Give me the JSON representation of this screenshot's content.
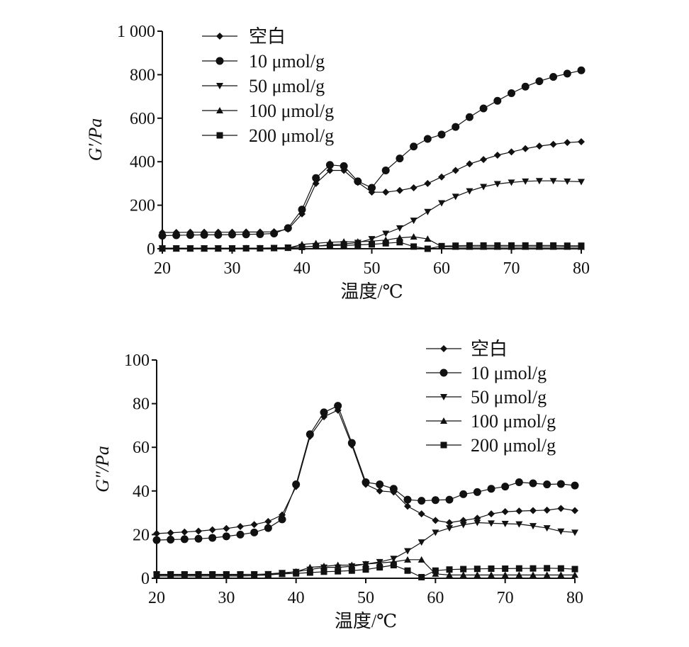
{
  "chart_data": [
    {
      "type": "line",
      "ylabel": "G′/Pa",
      "xlabel": "温度/℃",
      "xlim": [
        20,
        80
      ],
      "ylim": [
        0,
        1000
      ],
      "xticks": [
        20,
        30,
        40,
        50,
        60,
        70,
        80
      ],
      "yticks": [
        0,
        200,
        400,
        600,
        800,
        1000
      ],
      "ytick_labels": [
        "0",
        "200",
        "400",
        "600",
        "800",
        "1 000"
      ],
      "x": [
        20,
        22,
        24,
        26,
        28,
        30,
        32,
        34,
        36,
        38,
        40,
        42,
        44,
        46,
        48,
        50,
        52,
        54,
        56,
        58,
        60,
        62,
        64,
        66,
        68,
        70,
        72,
        74,
        76,
        78,
        80
      ],
      "legend_position": "top-left",
      "series": [
        {
          "name": "空白",
          "marker": "diamond",
          "values": [
            75,
            75,
            76,
            76,
            76,
            76,
            77,
            77,
            78,
            90,
            160,
            300,
            360,
            360,
            305,
            260,
            260,
            268,
            280,
            300,
            330,
            360,
            390,
            410,
            430,
            445,
            460,
            472,
            480,
            488,
            492
          ]
        },
        {
          "name": "10 μmol/g",
          "marker": "circle",
          "values": [
            60,
            62,
            63,
            64,
            64,
            65,
            66,
            67,
            70,
            95,
            180,
            325,
            385,
            380,
            310,
            280,
            360,
            415,
            470,
            505,
            525,
            560,
            605,
            645,
            680,
            715,
            745,
            770,
            790,
            805,
            820
          ]
        },
        {
          "name": "50 μmol/g",
          "marker": "triangle-down",
          "values": [
            3,
            3,
            3,
            3,
            3,
            3,
            3,
            3,
            4,
            5,
            8,
            12,
            18,
            22,
            28,
            45,
            70,
            95,
            130,
            170,
            210,
            240,
            265,
            285,
            298,
            305,
            310,
            312,
            312,
            310,
            308
          ]
        },
        {
          "name": "100 μmol/g",
          "marker": "triangle-up",
          "values": [
            1,
            1,
            1,
            1,
            1,
            1,
            2,
            2,
            2,
            3,
            20,
            25,
            30,
            32,
            32,
            35,
            40,
            50,
            55,
            45,
            10,
            8,
            8,
            8,
            8,
            8,
            8,
            8,
            8,
            8,
            8
          ]
        },
        {
          "name": "200 μmol/g",
          "marker": "square",
          "values": [
            1,
            1,
            1,
            1,
            1,
            1,
            2,
            2,
            3,
            5,
            8,
            12,
            15,
            15,
            18,
            20,
            25,
            30,
            10,
            0,
            12,
            14,
            15,
            15,
            15,
            15,
            15,
            15,
            15,
            14,
            14
          ]
        }
      ]
    },
    {
      "type": "line",
      "ylabel": "G″/Pa",
      "xlabel": "温度/℃",
      "xlim": [
        20,
        80
      ],
      "ylim": [
        0,
        100
      ],
      "xticks": [
        20,
        30,
        40,
        50,
        60,
        70,
        80
      ],
      "yticks": [
        0,
        20,
        40,
        60,
        80,
        100
      ],
      "ytick_labels": [
        "0",
        "20",
        "40",
        "60",
        "80",
        "100"
      ],
      "x": [
        20,
        22,
        24,
        26,
        28,
        30,
        32,
        34,
        36,
        38,
        40,
        42,
        44,
        46,
        48,
        50,
        52,
        54,
        56,
        58,
        60,
        62,
        64,
        66,
        68,
        70,
        72,
        74,
        76,
        78,
        80
      ],
      "legend_position": "top-right",
      "series": [
        {
          "name": "空白",
          "marker": "diamond",
          "values": [
            20.5,
            20.8,
            21.2,
            21.6,
            22.2,
            22.8,
            23.7,
            24.6,
            26,
            29,
            42,
            65,
            74,
            77,
            61,
            43,
            40,
            39.5,
            33,
            29.5,
            26.5,
            25.5,
            26.5,
            27.5,
            29.5,
            30.5,
            30.8,
            31,
            31.2,
            32,
            31
          ]
        },
        {
          "name": "10 μmol/g",
          "marker": "circle",
          "values": [
            17.5,
            17.7,
            17.9,
            18.1,
            18.5,
            19.2,
            20,
            21,
            23,
            27,
            43,
            66,
            76,
            79,
            62,
            44,
            43,
            41,
            36,
            35.5,
            35.8,
            36,
            38.5,
            39.5,
            41,
            42,
            44,
            43.5,
            43,
            43.2,
            42.5
          ]
        },
        {
          "name": "50 μmol/g",
          "marker": "triangle-down",
          "values": [
            1.5,
            1.5,
            1.5,
            1.5,
            1.5,
            1.5,
            1.5,
            1.7,
            2,
            2.5,
            3,
            4,
            5,
            5,
            5.5,
            6.5,
            7.5,
            9,
            12.5,
            16.5,
            21,
            23,
            24.5,
            25.5,
            25.2,
            25,
            24.8,
            24,
            23,
            21.5,
            21
          ]
        },
        {
          "name": "100 μmol/g",
          "marker": "triangle-up",
          "values": [
            1,
            1,
            1,
            1,
            1,
            1,
            1,
            1.2,
            1.5,
            2,
            3,
            5,
            5.5,
            6,
            6,
            6.5,
            7,
            7.5,
            8.5,
            8.5,
            2,
            1.5,
            1.5,
            1.5,
            1.5,
            1.5,
            1.5,
            1.5,
            1.5,
            1.5,
            1.5
          ]
        },
        {
          "name": "200 μmol/g",
          "marker": "square",
          "values": [
            1.8,
            1.8,
            1.8,
            1.8,
            1.8,
            1.8,
            1.8,
            1.8,
            1.8,
            2,
            2.2,
            2.6,
            3,
            3.2,
            3.5,
            4,
            5,
            6,
            3.5,
            0.5,
            3.5,
            4,
            4.2,
            4.3,
            4.4,
            4.4,
            4.5,
            4.5,
            4.6,
            4.5,
            4.2
          ]
        }
      ]
    }
  ]
}
